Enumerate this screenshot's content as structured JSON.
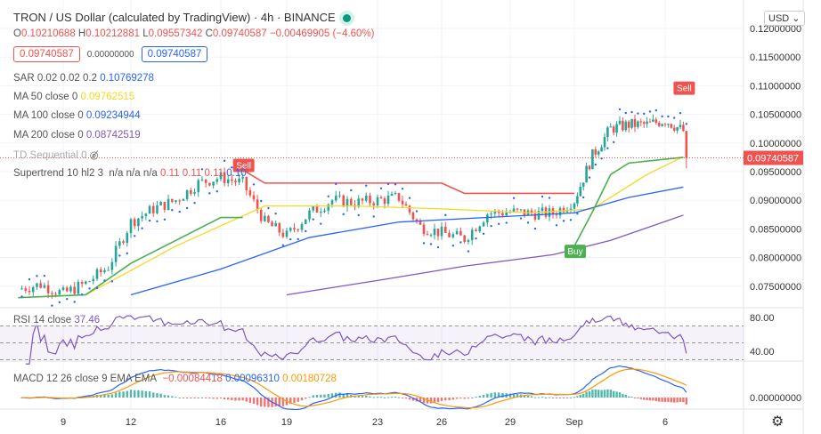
{
  "header": {
    "title": "TRON / US Dollar (calculated by TradingView) · 4h · BINANCE",
    "ohlc": {
      "o_label": "O",
      "o": "0.10210688",
      "h_label": "H",
      "h": "0.10212881",
      "l_label": "L",
      "l": "0.09557342",
      "c_label": "C",
      "c": "0.09740587",
      "change": "−0.00469905 (−4.60%)"
    },
    "sell_box": "0.09740587",
    "spread": "0.00000000",
    "buy_box": "0.09740587",
    "currency_button": "USD ⌄"
  },
  "indicators": {
    "sar": {
      "label": "SAR 0.02 0.02 0.2",
      "value": "0.10769278",
      "color": "#2962ff"
    },
    "ma50": {
      "label": "MA 50 close 0",
      "value": "0.09762515",
      "color": "#f5d922"
    },
    "ma100": {
      "label": "MA 100 close 0",
      "value": "0.09234944",
      "color": "#2962ff"
    },
    "ma200": {
      "label": "MA 200 close 0",
      "value": "0.08742519",
      "color": "#7e57c2"
    },
    "td": {
      "label": "TD Sequential 0",
      "icon": "eye-off-icon"
    },
    "supertrend": {
      "label": "Supertrend 10 hl2 3",
      "na1": "n/a",
      "na2": "n/a",
      "na3": "n/a",
      "v1": "0.11",
      "v2": "0.11",
      "v3": "0.11",
      "v4": "0.10"
    },
    "rsi": {
      "label": "RSI 14 close",
      "value": "37.46",
      "color": "#7e57c2"
    },
    "macd": {
      "label": "MACD 12 26 close 9 EMA EMA",
      "hist": "−0.00084418",
      "macd": "0.00096310",
      "signal": "0.00180728"
    }
  },
  "colors": {
    "up": "#26a69a",
    "down": "#ef5350",
    "supertrend_up": "#4caf50",
    "supertrend_down": "#ef5350",
    "macd": "#2962ff",
    "signal": "#ff9800"
  },
  "chart_data": {
    "type": "candlestick",
    "interval": "4h",
    "last_price": "0.09740587",
    "price_axis_ticks": [
      "0.12000000",
      "0.11500000",
      "0.11000000",
      "0.10500000",
      "0.10000000",
      "0.09500000",
      "0.09000000",
      "0.08500000",
      "0.08000000",
      "0.07500000"
    ],
    "price_range": [
      0.0735,
      0.1215
    ],
    "rsi_axis_ticks": [
      "80.00",
      "40.00"
    ],
    "macd_axis_ticks": [
      "0.00000000"
    ],
    "time_axis_ticks": [
      "9",
      "12",
      "16",
      "19",
      "23",
      "26",
      "29",
      "Sep",
      "6"
    ],
    "daily_close_approx": [
      [
        "Aug 7",
        0.0745
      ],
      [
        "Aug 8",
        0.0753
      ],
      [
        "Aug 9",
        0.0737
      ],
      [
        "Aug 10",
        0.0755
      ],
      [
        "Aug 11",
        0.0784
      ],
      [
        "Aug 12",
        0.0862
      ],
      [
        "Aug 13",
        0.0885
      ],
      [
        "Aug 14",
        0.09
      ],
      [
        "Aug 15",
        0.093
      ],
      [
        "Aug 16",
        0.094
      ],
      [
        "Aug 17",
        0.093
      ],
      [
        "Aug 18",
        0.0862
      ],
      [
        "Aug 19",
        0.0838
      ],
      [
        "Aug 20",
        0.0877
      ],
      [
        "Aug 21",
        0.09
      ],
      [
        "Aug 22",
        0.0896
      ],
      [
        "Aug 23",
        0.09
      ],
      [
        "Aug 24",
        0.0905
      ],
      [
        "Aug 25",
        0.0854
      ],
      [
        "Aug 26",
        0.0843
      ],
      [
        "Aug 27",
        0.0833
      ],
      [
        "Aug 28",
        0.0877
      ],
      [
        "Aug 29",
        0.088
      ],
      [
        "Aug 30",
        0.0877
      ],
      [
        "Aug 31",
        0.0877
      ],
      [
        "Sep 1",
        0.09
      ],
      [
        "Sep 2",
        0.0978
      ],
      [
        "Sep 3",
        0.1025
      ],
      [
        "Sep 4",
        0.1032
      ],
      [
        "Sep 5",
        0.1032
      ],
      [
        "Sep 6",
        0.104
      ],
      [
        "Sep 7",
        0.1021
      ]
    ],
    "last_candle": {
      "open": 0.10210688,
      "high": 0.10212881,
      "low": 0.09557342,
      "close": 0.09740587
    },
    "ma50_approx": [
      [
        "Aug 10",
        0.0735
      ],
      [
        "Aug 14",
        0.082
      ],
      [
        "Aug 18",
        0.089
      ],
      [
        "Aug 22",
        0.089
      ],
      [
        "Aug 26",
        0.0885
      ],
      [
        "Aug 30",
        0.0878
      ],
      [
        "Sep 2",
        0.0885
      ],
      [
        "Sep 5",
        0.0945
      ],
      [
        "Sep 7",
        0.0976
      ]
    ],
    "ma100_approx": [
      [
        "Aug 12",
        0.0735
      ],
      [
        "Aug 16",
        0.078
      ],
      [
        "Aug 20",
        0.0835
      ],
      [
        "Aug 24",
        0.0862
      ],
      [
        "Aug 28",
        0.087
      ],
      [
        "Sep 1",
        0.0878
      ],
      [
        "Sep 4",
        0.0905
      ],
      [
        "Sep 7",
        0.0923
      ]
    ],
    "ma200_approx": [
      [
        "Aug 19",
        0.0735
      ],
      [
        "Aug 23",
        0.076
      ],
      [
        "Aug 27",
        0.0785
      ],
      [
        "Aug 31",
        0.0805
      ],
      [
        "Sep 3",
        0.083
      ],
      [
        "Sep 7",
        0.0874
      ]
    ],
    "supertrend_approx": [
      {
        "trend": "up",
        "points": [
          [
            "Aug 7",
            0.073
          ],
          [
            "Aug 10",
            0.0735
          ],
          [
            "Aug 12",
            0.079
          ],
          [
            "Aug 14",
            0.083
          ],
          [
            "Aug 16",
            0.087
          ],
          [
            "Aug 17",
            0.087
          ]
        ]
      },
      {
        "trend": "down",
        "points": [
          [
            "Aug 17",
            0.0953
          ],
          [
            "Aug 18",
            0.093
          ],
          [
            "Aug 26",
            0.093
          ],
          [
            "Aug 27",
            0.0912
          ],
          [
            "Sep 1",
            0.0912
          ]
        ]
      },
      {
        "trend": "up",
        "points": [
          [
            "Sep 1",
            0.082
          ],
          [
            "Sep 2",
            0.088
          ],
          [
            "Sep 3",
            0.0945
          ],
          [
            "Sep 4",
            0.0965
          ],
          [
            "Sep 7",
            0.0975
          ]
        ]
      }
    ],
    "signals": [
      {
        "label": "Sell",
        "date": "Aug 17",
        "price": 0.096
      },
      {
        "label": "Buy",
        "date": "Sep 1",
        "price": 0.081
      },
      {
        "label": "Sell",
        "date": "Sep 7",
        "price": 0.1095
      }
    ]
  }
}
